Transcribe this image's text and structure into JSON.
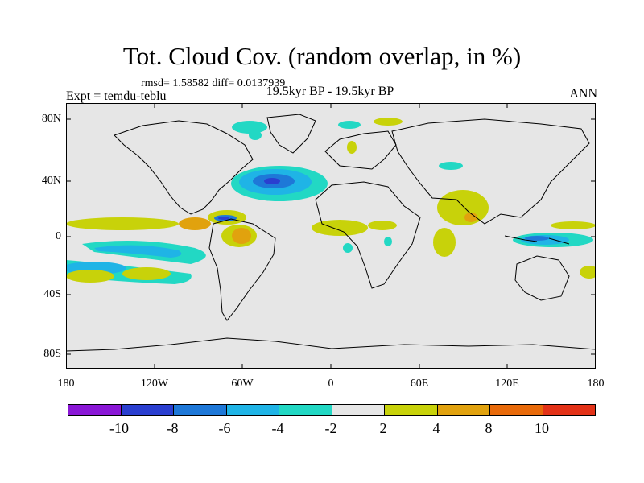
{
  "title": "Tot. Cloud Cov. (random overlap, in %)",
  "stats": "rmsd= 1.58582 diff= 0.0137939",
  "left_label": "Expt = temdu-teblu",
  "center_label": "19.5kyr BP - 19.5kyr BP",
  "right_label": "ANN",
  "lat_labels": [
    "80N",
    "40N",
    "0",
    "40S",
    "80S"
  ],
  "lon_labels": [
    "180",
    "120W",
    "60W",
    "0",
    "60E",
    "120E",
    "180"
  ],
  "colorbar": {
    "colors": [
      "#8a17d6",
      "#2a3fd0",
      "#1e78d8",
      "#1fb4e6",
      "#22d8c4",
      "#e6e6e6",
      "#c8d20a",
      "#e1a20e",
      "#e86a0a",
      "#e33218"
    ],
    "labels": [
      "-10",
      "-8",
      "-6",
      "-4",
      "-2",
      "2",
      "4",
      "8",
      "10"
    ]
  },
  "map": {
    "background": "#e6e6e6",
    "coastline_color": "#000000"
  }
}
